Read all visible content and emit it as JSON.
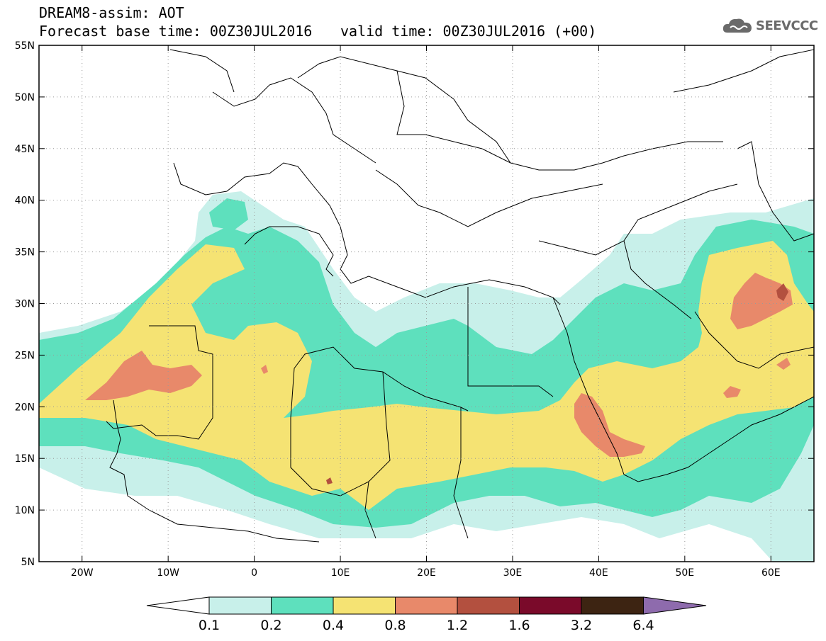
{
  "header": {
    "line1": "DREAM8-assim: AOT",
    "line2": "Forecast base time: 00Z30JUL2016",
    "line3": "valid time: 00Z30JUL2016 (+00)"
  },
  "logo": {
    "text": "SEEVCCC",
    "icon": "cloud-icon"
  },
  "map": {
    "lon_range": [
      -25,
      65
    ],
    "lat_range": [
      5,
      55
    ],
    "lat_labels": [
      "5N",
      "10N",
      "15N",
      "20N",
      "25N",
      "30N",
      "35N",
      "40N",
      "45N",
      "50N",
      "55N"
    ],
    "lon_labels": [
      "20W",
      "10W",
      "0",
      "10E",
      "20E",
      "30E",
      "40E",
      "50E",
      "60E"
    ]
  },
  "colorbar": {
    "levels": [
      "0.1",
      "0.2",
      "0.4",
      "0.8",
      "1.2",
      "1.6",
      "3.2",
      "6.4"
    ],
    "colors": [
      "#c8f0ea",
      "#5ee0bd",
      "#f5e373",
      "#e8896a",
      "#b3503f",
      "#7a0a2a",
      "#3d2412",
      "#8e6bad"
    ]
  }
}
